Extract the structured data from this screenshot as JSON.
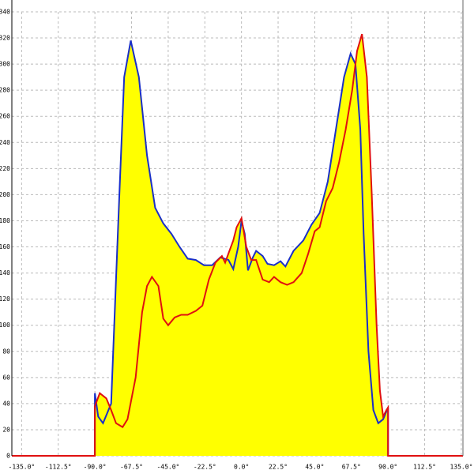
{
  "chart_data": {
    "type": "line",
    "xlim": [
      -141,
      136
    ],
    "ylim": [
      0,
      340
    ],
    "xticks": [
      {
        "value": -135,
        "label": "-135.0°"
      },
      {
        "value": -112.5,
        "label": "-112.5°"
      },
      {
        "value": -90,
        "label": "-90.0°"
      },
      {
        "value": -67.5,
        "label": "-67.5°"
      },
      {
        "value": -45,
        "label": "-45.0°"
      },
      {
        "value": -22.5,
        "label": "-22.5°"
      },
      {
        "value": 0,
        "label": "0.0°"
      },
      {
        "value": 22.5,
        "label": "22.5°"
      },
      {
        "value": 45,
        "label": "45.0°"
      },
      {
        "value": 67.5,
        "label": "67.5°"
      },
      {
        "value": 90,
        "label": "90.0°"
      },
      {
        "value": 112.5,
        "label": "112.5°"
      },
      {
        "value": 135,
        "label": "135.0°"
      }
    ],
    "yticks": [
      0,
      20,
      40,
      60,
      80,
      100,
      120,
      140,
      160,
      180,
      200,
      220,
      240,
      260,
      280,
      300,
      320,
      340
    ],
    "grid": true,
    "fill_color": "#ffff00",
    "series": [
      {
        "color": "#1a2fc8",
        "x": [
          -90,
          -90,
          -88,
          -85,
          -80,
          -75,
          -72,
          -68,
          -63,
          -58,
          -53,
          -48,
          -43,
          -38,
          -33,
          -28,
          -23,
          -18,
          -13,
          -8,
          -5,
          -2,
          0,
          2,
          4,
          7,
          9,
          13,
          16,
          20,
          24,
          27,
          32,
          38,
          43,
          48,
          53,
          58,
          63,
          67,
          70,
          73,
          75,
          78,
          81,
          84,
          87,
          90,
          90
        ],
        "values": [
          0,
          48,
          30,
          25,
          40,
          200,
          290,
          318,
          290,
          230,
          190,
          178,
          170,
          160,
          151,
          150,
          146,
          146,
          152,
          150,
          143,
          160,
          180,
          170,
          142,
          152,
          157,
          153,
          147,
          146,
          149,
          145,
          157,
          165,
          177,
          186,
          210,
          250,
          290,
          308,
          300,
          250,
          170,
          80,
          35,
          25,
          28,
          37,
          0
        ]
      },
      {
        "color": "#e01010",
        "x": [
          -141,
          -90,
          -90,
          -87,
          -83,
          -80,
          -77,
          -73,
          -70,
          -65,
          -61,
          -58,
          -55,
          -51,
          -48,
          -45,
          -41,
          -37,
          -33,
          -28,
          -24,
          -20,
          -16,
          -12,
          -10,
          -8,
          -5,
          -3,
          0,
          3,
          6,
          9,
          13,
          17,
          20,
          24,
          28,
          32,
          37,
          41,
          45,
          48,
          52,
          56,
          60,
          64,
          68,
          71,
          74,
          77,
          80,
          83,
          85,
          87,
          89,
          90,
          90,
          136
        ],
        "values": [
          0,
          0,
          38,
          48,
          44,
          35,
          25,
          22,
          28,
          60,
          110,
          130,
          137,
          130,
          105,
          100,
          106,
          108,
          108,
          111,
          115,
          135,
          148,
          153,
          148,
          155,
          165,
          175,
          182,
          160,
          150,
          150,
          135,
          133,
          137,
          133,
          131,
          133,
          140,
          155,
          172,
          175,
          195,
          205,
          225,
          250,
          280,
          310,
          323,
          290,
          200,
          100,
          50,
          30,
          35,
          37,
          0,
          0
        ]
      }
    ]
  }
}
